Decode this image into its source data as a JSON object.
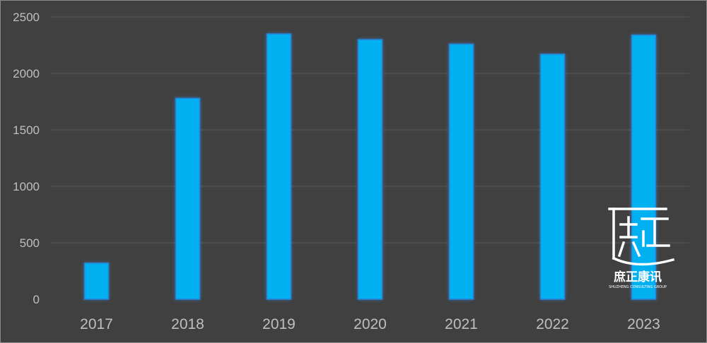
{
  "chart_data": {
    "type": "bar",
    "categories": [
      "2017",
      "2018",
      "2019",
      "2020",
      "2021",
      "2022",
      "2023"
    ],
    "values": [
      320,
      1780,
      2350,
      2300,
      2260,
      2170,
      2340
    ],
    "title": "",
    "xlabel": "",
    "ylabel": "",
    "ylim": [
      0,
      2500
    ],
    "yticks": [
      "0",
      "500",
      "1000",
      "1500",
      "2000",
      "2500"
    ],
    "grid": true,
    "legend": "none",
    "colors": {
      "bar": "#00b0f0",
      "bar_edge": "#2a7fd4",
      "background": "#404040",
      "gridline": "#595959",
      "text": "#bfbfbf"
    }
  },
  "watermark": {
    "glyph": "庶正",
    "name": "庶正康讯",
    "sub": "SHUZHENG CONSULTING GROUP"
  }
}
